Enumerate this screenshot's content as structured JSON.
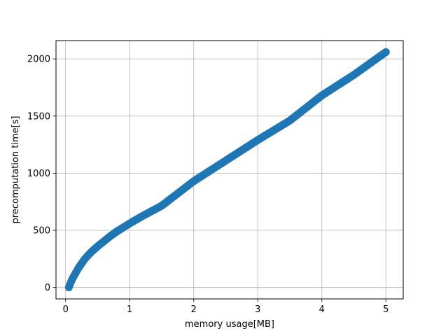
{
  "chart_data": {
    "type": "scatter",
    "title": "",
    "xlabel": "memory usage[MB]",
    "ylabel": "precomputation time[s]",
    "xlim": [
      -0.15,
      5.27
    ],
    "ylim": [
      -100,
      2160
    ],
    "grid": true,
    "marker_color": "#1f77b4",
    "xticks": [
      0,
      1,
      2,
      3,
      4,
      5
    ],
    "yticks": [
      0,
      500,
      1000,
      1500,
      2000
    ],
    "anchors": [
      [
        0.05,
        0
      ],
      [
        0.1,
        70
      ],
      [
        0.2,
        170
      ],
      [
        0.3,
        250
      ],
      [
        0.4,
        310
      ],
      [
        0.5,
        360
      ],
      [
        0.6,
        405
      ],
      [
        0.7,
        450
      ],
      [
        0.8,
        490
      ],
      [
        1.0,
        560
      ],
      [
        1.2,
        625
      ],
      [
        1.5,
        715
      ],
      [
        2.0,
        930
      ],
      [
        2.5,
        1110
      ],
      [
        3.0,
        1290
      ],
      [
        3.5,
        1460
      ],
      [
        4.0,
        1680
      ],
      [
        4.5,
        1860
      ],
      [
        5.0,
        2060
      ]
    ]
  }
}
